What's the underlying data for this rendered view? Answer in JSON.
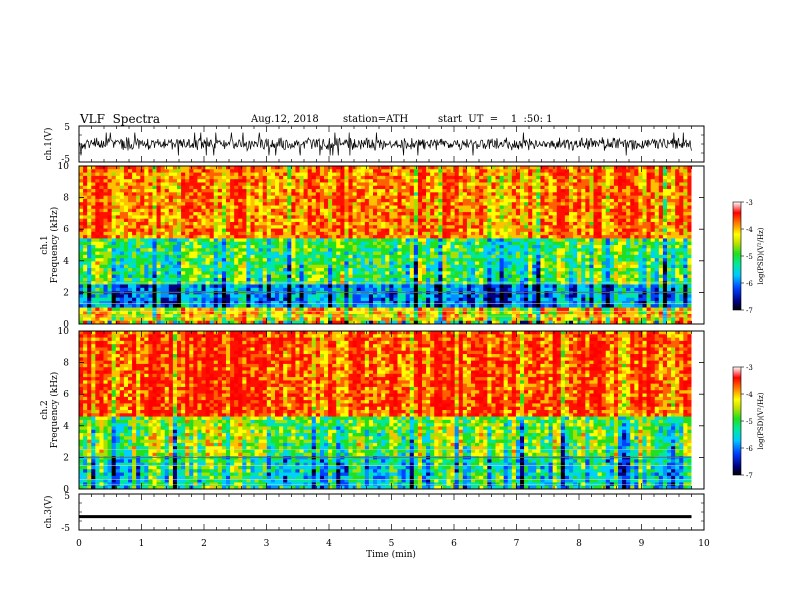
{
  "header": {
    "title": "VLF  Spectra",
    "date": "Aug.12, 2018",
    "station": "station=ATH",
    "start_ut": "start  UT  =    1  :50: 1"
  },
  "chart_data": [
    {
      "type": "line",
      "name": "ch1-waveform",
      "ylabel": "ch.1(V)",
      "ylim": [
        -5,
        5
      ],
      "yticks": [
        "5",
        "-5"
      ],
      "amplitude_range": [
        -2,
        2
      ]
    },
    {
      "type": "heatmap",
      "name": "ch1-spectrogram",
      "ylabel_line1": "ch.1",
      "ylabel_line2": "Frequency (kHz)",
      "ylim": [
        0,
        10
      ],
      "yticks": [
        "0",
        "2",
        "4",
        "6",
        "8",
        "10"
      ],
      "dominant_bands": [
        {
          "freq_khz": [
            0,
            0.3
          ],
          "level": "mixed"
        },
        {
          "freq_khz": [
            0.3,
            1.0
          ],
          "level": -4.2
        },
        {
          "freq_khz": [
            1.0,
            2.5
          ],
          "level": -5.8
        },
        {
          "freq_khz": [
            2.5,
            5.5
          ],
          "level": -5.0
        },
        {
          "freq_khz": [
            5.5,
            10
          ],
          "level": -3.8
        }
      ],
      "colorbar": {
        "label": "log(PSD)(V²/Hz)",
        "range": [
          -7,
          -3
        ],
        "ticks": [
          "-3",
          "-4",
          "-5",
          "-6",
          "-7"
        ]
      }
    },
    {
      "type": "heatmap",
      "name": "ch2-spectrogram",
      "ylabel_line1": "ch.2",
      "ylabel_line2": "Frequency (kHz)",
      "ylim": [
        0,
        10
      ],
      "yticks": [
        "0",
        "2",
        "4",
        "6",
        "8",
        "10"
      ],
      "dominant_bands": [
        {
          "freq_khz": [
            0,
            2.0
          ],
          "level": -5.3
        },
        {
          "freq_khz": [
            2.0,
            4.5
          ],
          "level": -4.8
        },
        {
          "freq_khz": [
            4.5,
            10
          ],
          "level": -3.6
        }
      ],
      "colorbar": {
        "label": "log(PSD)(V²/Hz)",
        "range": [
          -7,
          -3
        ],
        "ticks": [
          "-3",
          "-4",
          "-5",
          "-6",
          "-7"
        ]
      }
    },
    {
      "type": "line",
      "name": "ch3-waveform",
      "ylabel": "ch.3(V)",
      "ylim": [
        -5,
        5
      ],
      "yticks": [
        "5",
        "-5"
      ],
      "mean_value": -1.3
    }
  ],
  "x_axis": {
    "label": "Time  (min)",
    "xlim": [
      0,
      10
    ],
    "ticks": [
      "0",
      "1",
      "2",
      "3",
      "4",
      "5",
      "6",
      "7",
      "8",
      "9",
      "10"
    ],
    "data_end_min": 9.8
  },
  "colors": {
    "colormap": [
      "#000000",
      "#0000c8",
      "#0050ff",
      "#00c0ff",
      "#00e8a0",
      "#20e020",
      "#a8e000",
      "#ffff00",
      "#ffc000",
      "#ff3000",
      "#ff0000"
    ]
  }
}
